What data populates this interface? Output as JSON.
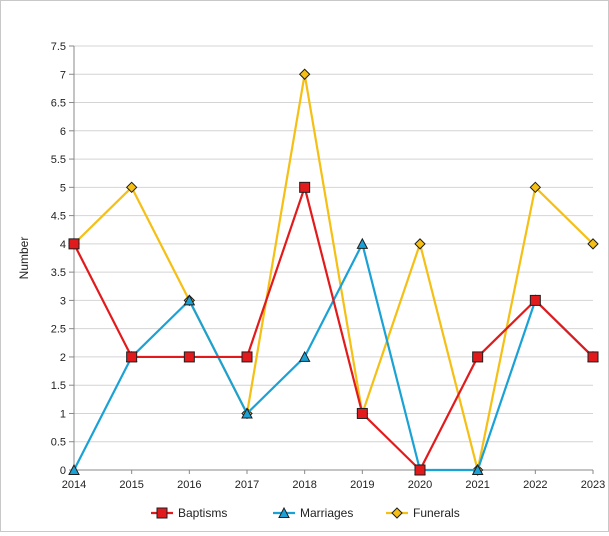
{
  "chart_data": {
    "type": "line",
    "x": [
      "2014",
      "2015",
      "2016",
      "2017",
      "2018",
      "2019",
      "2020",
      "2021",
      "2022",
      "2023"
    ],
    "ylabel": "Number",
    "xlabel": "",
    "ylim": [
      0,
      7.5
    ],
    "yticks": [
      "0",
      "0.5",
      "1",
      "1.5",
      "2",
      "2.5",
      "3",
      "3.5",
      "4",
      "4.5",
      "5",
      "5.5",
      "6",
      "6.5",
      "7",
      "7.5"
    ],
    "grid": "horizontal",
    "legend_position": "bottom",
    "series": [
      {
        "name": "Baptisms",
        "values": [
          4,
          2,
          2,
          2,
          5,
          1,
          0,
          2,
          3,
          2
        ],
        "color": "#e31a1c",
        "marker": "square"
      },
      {
        "name": "Marriages",
        "values": [
          0,
          2,
          3,
          1,
          2,
          4,
          0,
          0,
          3,
          2
        ],
        "color": "#1aa2d6",
        "marker": "triangle"
      },
      {
        "name": "Funerals",
        "values": [
          4,
          5,
          3,
          1,
          7,
          1,
          4,
          0,
          5,
          4
        ],
        "color": "#f5bf14",
        "marker": "diamond"
      }
    ]
  }
}
